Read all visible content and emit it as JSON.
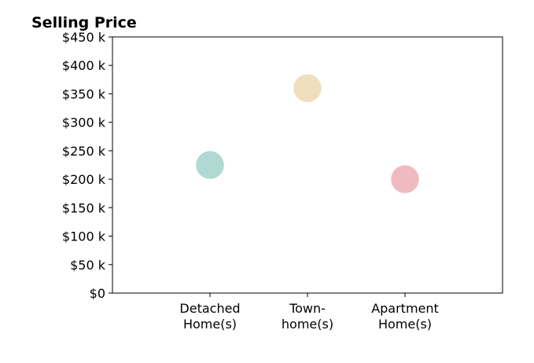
{
  "chart_data": {
    "type": "scatter",
    "title": "Selling Price",
    "xlabel": "",
    "ylabel": "",
    "categories": [
      {
        "lines": [
          "Detached",
          "Home(s)"
        ]
      },
      {
        "lines": [
          "Town-",
          "home(s)"
        ]
      },
      {
        "lines": [
          "Apartment",
          "Home(s)"
        ]
      }
    ],
    "points": [
      {
        "category": "Detached Home(s)",
        "value": 225000,
        "color": "#b6e0da"
      },
      {
        "category": "Town-home(s)",
        "value": 360000,
        "color": "#f7e6c4"
      },
      {
        "category": "Apartment Home(s)",
        "value": 200000,
        "color": "#f7c1c5"
      }
    ],
    "ylim": [
      0,
      450000
    ],
    "yticks": [
      {
        "value": 0,
        "label": "$0"
      },
      {
        "value": 50000,
        "label": "$50 k"
      },
      {
        "value": 100000,
        "label": "$100 k"
      },
      {
        "value": 150000,
        "label": "$150 k"
      },
      {
        "value": 200000,
        "label": "$200 k"
      },
      {
        "value": 250000,
        "label": "$250 k"
      },
      {
        "value": 300000,
        "label": "$300 k"
      },
      {
        "value": 350000,
        "label": "$350 k"
      },
      {
        "value": 400000,
        "label": "$400 k"
      },
      {
        "value": 450000,
        "label": "$450 k"
      }
    ],
    "grid": false,
    "legend": "none"
  }
}
